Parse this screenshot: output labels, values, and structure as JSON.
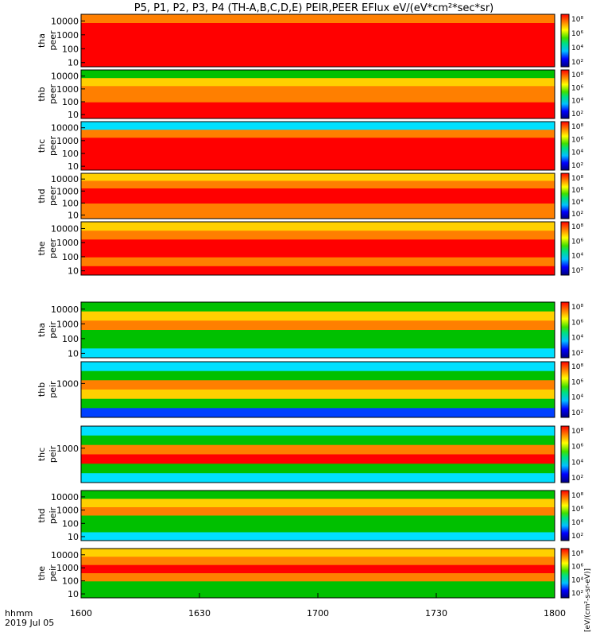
{
  "title": "P5, P1, P2, P3, P4 (TH-A,B,C,D,E) PEIR,PEER EFlux eV/(eV*cm²*sec*sr)",
  "x_axis": {
    "label_line1": "hhmm",
    "label_line2": "2019 Jul 05",
    "ticks": [
      "1600",
      "1630",
      "1700",
      "1730",
      "1800"
    ]
  },
  "colorbar_label": "[eV/(cm²-s-sr-eV)]",
  "colorbar_ticks_main": [
    "10⁸",
    "10⁶",
    "10⁴",
    "10²"
  ],
  "colors": {
    "frame": "#000000",
    "background": "#ffffff",
    "saturated": "#ff0000",
    "high": "#ff7f00",
    "mid": "#00c000",
    "low": "#00e0ff",
    "min": "#0000a0"
  },
  "chart_data": [
    {
      "type": "heatmap",
      "ylabel": "tha\npeer",
      "yticks": [
        "10000",
        "1000",
        "100",
        "10"
      ],
      "ylim": [
        5,
        30000
      ],
      "yscale": "log",
      "xlim": [
        "1600",
        "1800"
      ]
    },
    {
      "type": "heatmap",
      "ylabel": "thb\npeer",
      "yticks": [
        "10000",
        "1000",
        "100",
        "10"
      ],
      "ylim": [
        5,
        30000
      ],
      "yscale": "log",
      "xlim": [
        "1600",
        "1800"
      ]
    },
    {
      "type": "heatmap",
      "ylabel": "thc\npeer",
      "yticks": [
        "10000",
        "1000",
        "100",
        "10"
      ],
      "ylim": [
        5,
        30000
      ],
      "yscale": "log",
      "xlim": [
        "1600",
        "1800"
      ]
    },
    {
      "type": "heatmap",
      "ylabel": "thd\npeer",
      "yticks": [
        "10000",
        "1000",
        "100",
        "10"
      ],
      "ylim": [
        5,
        30000
      ],
      "yscale": "log",
      "xlim": [
        "1600",
        "1800"
      ]
    },
    {
      "type": "heatmap",
      "ylabel": "the\npeer",
      "yticks": [
        "10000",
        "1000",
        "100",
        "10"
      ],
      "ylim": [
        5,
        30000
      ],
      "yscale": "log",
      "xlim": [
        "1600",
        "1800"
      ]
    },
    {
      "type": "heatmap",
      "ylabel": "tha\npeir",
      "yticks": [
        "10000",
        "1000",
        "100",
        "10"
      ],
      "ylim": [
        5,
        30000
      ],
      "yscale": "log",
      "xlim": [
        "1600",
        "1800"
      ]
    },
    {
      "type": "heatmap",
      "ylabel": "thb\npeir",
      "yticks": [
        "1000"
      ],
      "ylim": [
        5,
        30000
      ],
      "yscale": "log",
      "xlim": [
        "1600",
        "1800"
      ]
    },
    {
      "type": "heatmap",
      "ylabel": "thc\npeir",
      "yticks": [
        "1000"
      ],
      "ylim": [
        5,
        30000
      ],
      "yscale": "log",
      "xlim": [
        "1600",
        "1800"
      ]
    },
    {
      "type": "heatmap",
      "ylabel": "thd\npeir",
      "yticks": [
        "10000",
        "1000",
        "100",
        "10"
      ],
      "ylim": [
        5,
        30000
      ],
      "yscale": "log",
      "xlim": [
        "1600",
        "1800"
      ]
    },
    {
      "type": "heatmap",
      "ylabel": "the\npeir",
      "yticks": [
        "10000",
        "1000",
        "100",
        "10"
      ],
      "ylim": [
        5,
        30000
      ],
      "yscale": "log",
      "xlim": [
        "1600",
        "1800"
      ]
    }
  ]
}
